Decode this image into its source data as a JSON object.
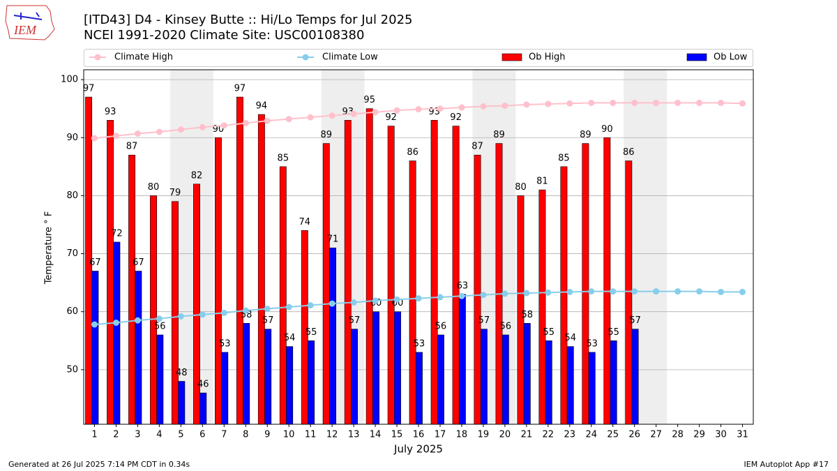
{
  "chart_data": {
    "type": "bar",
    "logo_text": "IEM",
    "title": "[ITD43] D4 - Kinsey Butte  :: Hi/Lo Temps for Jul 2025",
    "subtitle": "NCEI 1991-2020 Climate Site: USC00108380",
    "y_label": "Temperature ° F",
    "x_label": "July 2025",
    "footer_left": "Generated at 26 Jul 2025 7:14 PM CDT in 0.34s",
    "footer_right": "IEM Autoplot App #17",
    "categories": [
      "1",
      "2",
      "3",
      "4",
      "5",
      "6",
      "7",
      "8",
      "9",
      "10",
      "11",
      "12",
      "13",
      "14",
      "15",
      "16",
      "17",
      "18",
      "19",
      "20",
      "21",
      "22",
      "23",
      "24",
      "25",
      "26",
      "27",
      "28",
      "29",
      "30",
      "31"
    ],
    "shaded_ranges": [
      [
        4.5,
        6.5
      ],
      [
        11.5,
        13.5
      ],
      [
        18.5,
        20.5
      ],
      [
        25.5,
        27.5
      ]
    ],
    "series": [
      {
        "name": "Climate High",
        "color": "#ffc0cb",
        "style": "line",
        "values": [
          89.9,
          90.3,
          90.7,
          91.0,
          91.4,
          91.8,
          92.1,
          92.5,
          92.9,
          93.2,
          93.5,
          93.8,
          94.1,
          94.4,
          94.7,
          94.9,
          95.0,
          95.2,
          95.4,
          95.5,
          95.7,
          95.8,
          95.9,
          96.0,
          96.0,
          96.0,
          96.0,
          96.0,
          96.0,
          96.0,
          95.9
        ]
      },
      {
        "name": "Climate Low",
        "color": "#87ceeb",
        "style": "line",
        "values": [
          57.8,
          58.1,
          58.5,
          58.8,
          59.2,
          59.5,
          59.8,
          60.2,
          60.5,
          60.8,
          61.1,
          61.4,
          61.6,
          61.9,
          62.1,
          62.3,
          62.5,
          62.7,
          62.9,
          63.1,
          63.2,
          63.3,
          63.4,
          63.5,
          63.5,
          63.5,
          63.5,
          63.5,
          63.5,
          63.4,
          63.4
        ]
      },
      {
        "name": "Ob High",
        "color": "#ff0000",
        "style": "bar",
        "values": [
          97,
          93,
          87,
          80,
          79,
          82,
          90,
          97,
          94,
          85,
          74,
          89,
          93,
          95,
          92,
          86,
          93,
          92,
          87,
          89,
          80,
          81,
          85,
          89,
          90,
          86,
          null,
          null,
          null,
          null,
          null
        ]
      },
      {
        "name": "Ob Low",
        "color": "#0000ff",
        "style": "bar",
        "values": [
          67,
          72,
          67,
          56,
          48,
          46,
          53,
          58,
          57,
          54,
          55,
          71,
          57,
          60,
          60,
          53,
          56,
          63,
          57,
          56,
          58,
          55,
          54,
          53,
          55,
          57,
          null,
          null,
          null,
          null,
          null
        ]
      }
    ],
    "xlim": [
      0.5,
      31.5
    ],
    "ylim": [
      40.6,
      101.7
    ],
    "yticks": [
      50,
      60,
      70,
      80,
      90,
      100
    ],
    "grid": true
  }
}
